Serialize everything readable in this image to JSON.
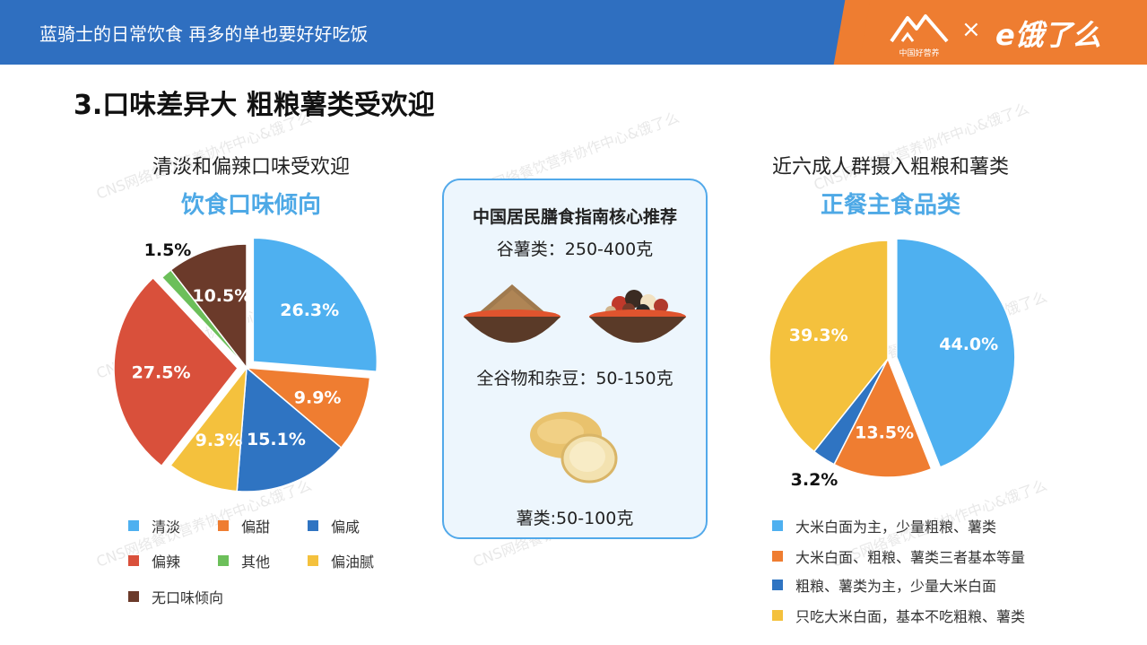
{
  "header": {
    "title": "蓝骑士的日常饮食 再多的单也要好好吃饭",
    "logo_left_sub": "中国好营养",
    "logo_x": "×",
    "logo_right": "e饿了么"
  },
  "page_title": "3.口味差异大 粗粮薯类受欢迎",
  "watermark": "CNS网络餐饮营养协作中心&饿了么",
  "guide": {
    "title": "中国居民膳食指南核心推荐",
    "item1": "谷薯类：250-400克",
    "item2": "全谷物和杂豆：50-150克",
    "item3": "薯类:50-100克"
  },
  "chart_data": [
    {
      "type": "pie",
      "subtitle": "清淡和偏辣口味受欢迎",
      "title": "饮食口味倾向",
      "slices": [
        {
          "label": "清淡",
          "value": 26.3,
          "display": "26.3%",
          "color": "#4eb0f0",
          "exploded": true
        },
        {
          "label": "偏甜",
          "value": 9.9,
          "display": "9.9%",
          "color": "#ef7d31"
        },
        {
          "label": "偏咸",
          "value": 15.1,
          "display": "15.1%",
          "color": "#2f74c2"
        },
        {
          "label": "偏油腻",
          "value": 9.3,
          "display": "9.3%",
          "color": "#f4c13d"
        },
        {
          "label": "偏辣",
          "value": 27.5,
          "display": "27.5%",
          "color": "#d9503b",
          "exploded": true
        },
        {
          "label": "其他",
          "value": 1.5,
          "display": "1.5%",
          "color": "#6cbf5a"
        },
        {
          "label": "无口味倾向",
          "value": 10.5,
          "display": "10.5%",
          "color": "#6b3a2a"
        }
      ],
      "legend": [
        "清淡",
        "偏甜",
        "偏咸",
        "偏辣",
        "其他",
        "偏油腻",
        "无口味倾向"
      ]
    },
    {
      "type": "pie",
      "subtitle": "近六成人群摄入粗粮和薯类",
      "title": "正餐主食品类",
      "slices": [
        {
          "label": "大米白面为主，少量粗粮、薯类",
          "value": 44.0,
          "display": "44.0%",
          "color": "#4eb0f0",
          "exploded": true
        },
        {
          "label": "大米白面、粗粮、薯类三者基本等量",
          "value": 13.5,
          "display": "13.5%",
          "color": "#ef7d31"
        },
        {
          "label": "粗粮、薯类为主，少量大米白面",
          "value": 3.2,
          "display": "3.2%",
          "color": "#2f74c2"
        },
        {
          "label": "只吃大米白面，基本不吃粗粮、薯类",
          "value": 39.3,
          "display": "39.3%",
          "color": "#f4c13d"
        }
      ],
      "legend": [
        "大米白面为主，少量粗粮、薯类",
        "大米白面、粗粮、薯类三者基本等量",
        "粗粮、薯类为主，少量大米白面",
        "只吃大米白面，基本不吃粗粮、薯类"
      ]
    }
  ]
}
